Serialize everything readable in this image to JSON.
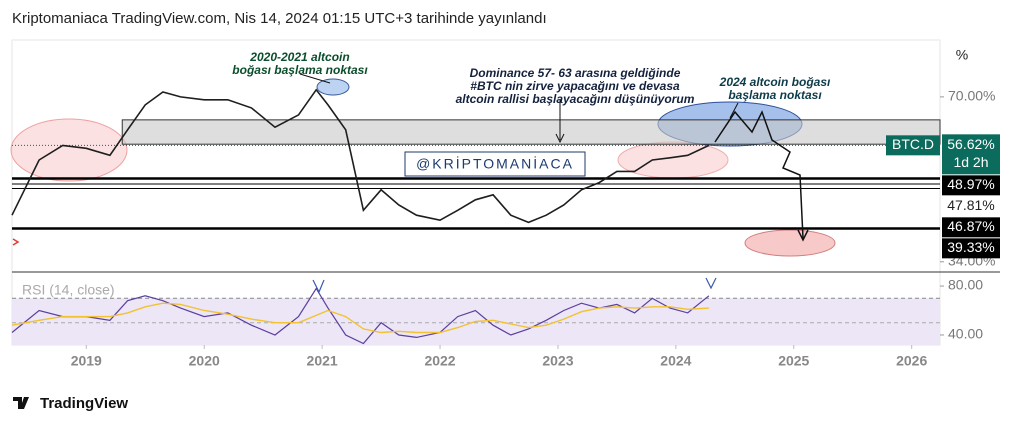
{
  "header": "Kriptomaniaca TradingView.com, Nis 14, 2024 01:15 UTC+3 tarihinde yayınlandı",
  "footer": "TradingView",
  "chart_data": {
    "type": "line",
    "currency_label": "%",
    "watermark": "@KRİPTOMANİACA",
    "log_scale": true,
    "x": [
      2018.37,
      2018.6,
      2018.8,
      2019.0,
      2019.2,
      2019.35,
      2019.5,
      2019.65,
      2019.8,
      2020.0,
      2020.2,
      2020.4,
      2020.6,
      2020.8,
      2020.95,
      2021.05,
      2021.2,
      2021.35,
      2021.5,
      2021.65,
      2021.8,
      2022.0,
      2022.15,
      2022.3,
      2022.45,
      2022.6,
      2022.75,
      2022.9,
      2023.05,
      2023.2,
      2023.35,
      2023.5,
      2023.65,
      2023.8,
      2023.95,
      2024.1,
      2024.28
    ],
    "xlim": [
      2018.37,
      2026.24
    ],
    "xticks": [
      2019,
      2020,
      2021,
      2022,
      2023,
      2024,
      2025,
      2026
    ],
    "series": [
      {
        "color": "#1e1e1e",
        "values": [
          41.7,
          53.1,
          56.6,
          55.9,
          54.2,
          60.6,
          67.6,
          71.5,
          70,
          69.1,
          69.1,
          66.7,
          61.3,
          64.7,
          72.2,
          67.6,
          60.6,
          42.6,
          46.6,
          43.6,
          41.7,
          40.8,
          42.6,
          44.6,
          45.6,
          41.7,
          40.4,
          41.7,
          43.6,
          46.6,
          48.1,
          50.5,
          50.5,
          53.1,
          53.6,
          54.2,
          56.6
        ]
      }
    ],
    "ylim": [
      32.8,
      89.8
    ],
    "yticks": [
      {
        "value": 70,
        "label": "70.00%"
      },
      {
        "value": 34,
        "label": "34.00%"
      }
    ],
    "zone_range": [
      56.9,
      63.3
    ],
    "last": {
      "symbol": "BTC.D",
      "value": 56.62,
      "label": "56.62%",
      "countdown": "1d 2h",
      "color": "#0b6b5c"
    },
    "levels": [
      {
        "value": 48.97,
        "label": "48.97%",
        "line_width": 2.5
      },
      {
        "value": 47.81,
        "label": "47.81%",
        "line_width": 1
      },
      {
        "value": 46.87,
        "label": "46.87%",
        "line_width": 1
      },
      {
        "value": 39.33,
        "label": "39.33%",
        "line_width": 2.5
      }
    ],
    "annotations": [
      {
        "lines": [
          "2020-2021 altcoin",
          "boğası başlama noktası"
        ],
        "color": "#0b4d2c"
      },
      {
        "lines": [
          "Dominance 57- 63 arasına geldiğinde",
          "#BTC nin zirve yapacağını ve devasa",
          "altcoin rallisi başlayacağını düşünüyorum"
        ],
        "color": "#14213d"
      },
      {
        "lines": [
          "2024 altcoin boğası",
          "başlama noktası"
        ],
        "color": "#0d3b4a"
      }
    ],
    "rsi": {
      "title": "RSI (14, close)",
      "ylim": [
        31.8,
        83.3
      ],
      "yticks": [
        {
          "value": 80,
          "label": "80.00"
        },
        {
          "value": 40,
          "label": "40.00"
        }
      ],
      "band": [
        30,
        70
      ],
      "midline": 50,
      "series": [
        {
          "color": "#5b3f9e",
          "values": [
            42,
            60,
            55,
            55,
            52,
            68,
            72,
            68,
            62,
            55,
            58,
            48,
            40,
            55,
            78,
            62,
            40,
            33,
            50,
            40,
            38,
            42,
            55,
            60,
            48,
            40,
            45,
            52,
            60,
            66,
            62,
            65,
            58,
            70,
            62,
            58,
            72
          ]
        },
        {
          "color": "#f2c230",
          "values": [
            48,
            52,
            55,
            55,
            55,
            58,
            63,
            66,
            65,
            60,
            57,
            53,
            50,
            50,
            56,
            60,
            55,
            45,
            42,
            43,
            42,
            42,
            46,
            51,
            52,
            49,
            46,
            48,
            53,
            59,
            62,
            63,
            62,
            63,
            63,
            61,
            62
          ]
        }
      ]
    }
  }
}
